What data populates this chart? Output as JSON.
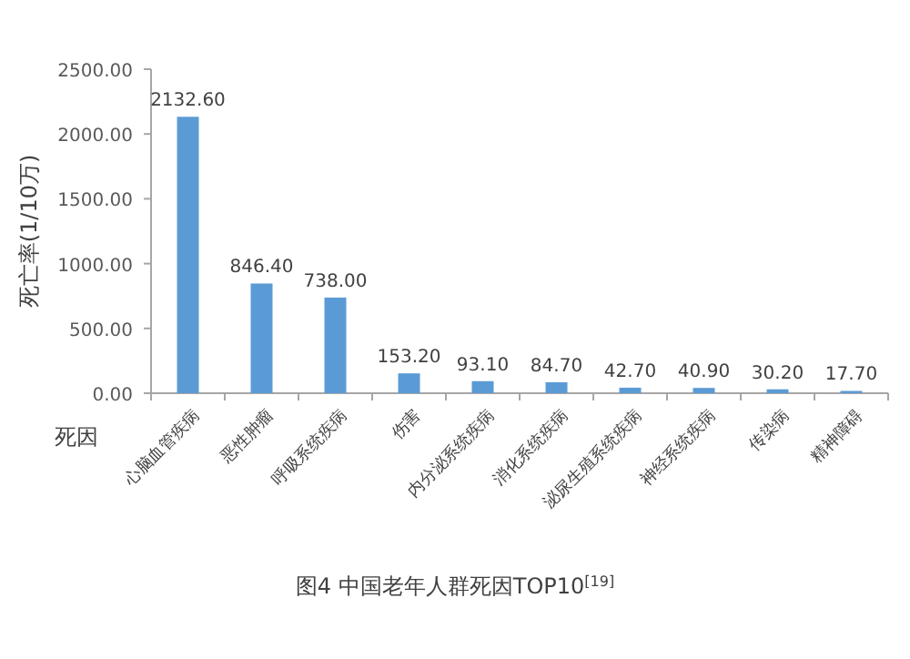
{
  "chart_data": {
    "type": "bar",
    "xlabel": "死因",
    "ylabel": "死亡率(1/10万)",
    "categories": [
      "心脑血管疾病",
      "恶性肿瘤",
      "呼吸系统疾病",
      "伤害",
      "内分泌系统疾病",
      "消化系统疾病",
      "泌尿生殖系统疾病",
      "神经系统疾病",
      "传染病",
      "精神障碍"
    ],
    "values": [
      2132.6,
      846.4,
      738.0,
      153.2,
      93.1,
      84.7,
      42.7,
      40.9,
      30.2,
      17.7
    ],
    "value_labels": [
      "2132.60",
      "846.40",
      "738.00",
      "153.20",
      "93.10",
      "84.70",
      "42.70",
      "40.90",
      "30.20",
      "17.70"
    ],
    "color": "#5b9bd5",
    "ylim": [
      0,
      2500
    ],
    "yticks": [
      {
        "value": 0,
        "label": "0.00"
      },
      {
        "value": 500,
        "label": "500.00"
      },
      {
        "value": 1000,
        "label": "1000.00"
      },
      {
        "value": 1500,
        "label": "1500.00"
      },
      {
        "value": 2000,
        "label": "2000.00"
      },
      {
        "value": 2500,
        "label": "2500.00"
      }
    ],
    "grid": false,
    "annotations": [
      "图4  中国老年人群死因TOP10$^{[19]}$"
    ]
  }
}
